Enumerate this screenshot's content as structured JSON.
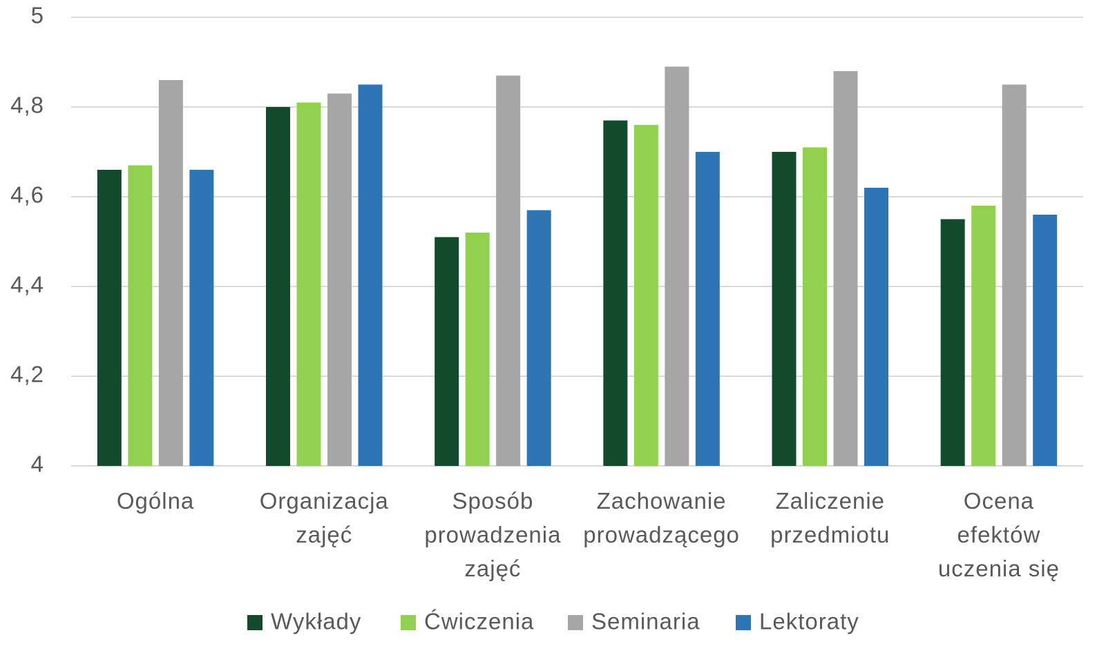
{
  "chart_data": {
    "type": "bar",
    "categories": [
      "Ogólna",
      "Organizacja\nzajęć",
      "Sposób\nprowadzenia\nzajęć",
      "Zachowanie\nprowadzącego",
      "Zaliczenie\nprzedmiotu",
      "Ocena\nefektów\nuczenia się"
    ],
    "series": [
      {
        "name": "Wykłady",
        "color": "#134a2b",
        "values": [
          4.66,
          4.8,
          4.51,
          4.77,
          4.7,
          4.55
        ]
      },
      {
        "name": "Ćwiczenia",
        "color": "#92d050",
        "values": [
          4.67,
          4.81,
          4.52,
          4.76,
          4.71,
          4.58
        ]
      },
      {
        "name": "Seminaria",
        "color": "#a6a6a6",
        "values": [
          4.86,
          4.83,
          4.87,
          4.89,
          4.88,
          4.85
        ]
      },
      {
        "name": "Lektoraty",
        "color": "#2e75b6",
        "values": [
          4.66,
          4.85,
          4.57,
          4.7,
          4.62,
          4.56
        ]
      }
    ],
    "ylim": [
      4,
      5
    ],
    "yticks": [
      4,
      {
        "value": 4.2,
        "label": "4,2"
      },
      {
        "value": 4.4,
        "label": "4,4"
      },
      {
        "value": 4.6,
        "label": "4,6"
      },
      {
        "value": 4.8,
        "label": "4,8"
      },
      5
    ],
    "grid": true,
    "legend": "bottom"
  }
}
